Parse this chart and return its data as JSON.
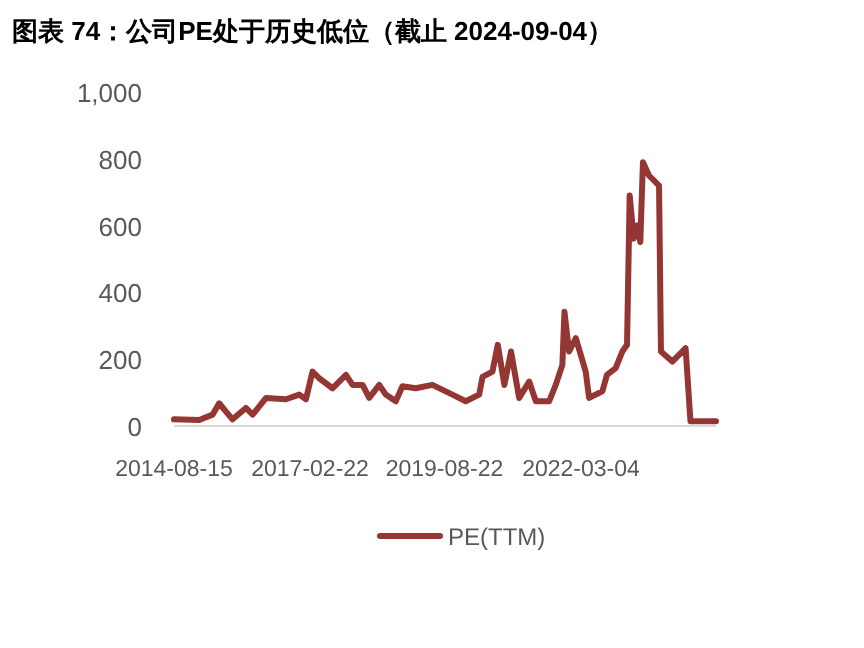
{
  "chart_data": {
    "type": "line",
    "title": "图表 74：公司PE处于历史低位（截止 2024-09-04）",
    "x": [
      "2014-08-15",
      "2015-02-02",
      "2015-05-03",
      "2015-06-17",
      "2015-08-01",
      "2015-09-16",
      "2015-12-15",
      "2016-01-30",
      "2016-04-30",
      "2016-09-12",
      "2016-12-11",
      "2017-01-25",
      "2017-03-11",
      "2017-04-25",
      "2017-07-24",
      "2017-10-23",
      "2017-12-07",
      "2018-02-13",
      "2018-03-30",
      "2018-06-06",
      "2018-07-20",
      "2018-09-26",
      "2018-11-10",
      "2019-02-08",
      "2019-06-01",
      "2019-10-15",
      "2020-01-13",
      "2020-04-13",
      "2020-05-06",
      "2020-07-12",
      "2020-08-17",
      "2020-10-01",
      "2020-11-15",
      "2021-01-09",
      "2021-03-18",
      "2021-05-02",
      "2021-07-31",
      "2021-09-14",
      "2021-10-29",
      "2021-11-12",
      "2021-12-13",
      "2022-01-28",
      "2022-04-05",
      "2022-04-28",
      "2022-07-27",
      "2022-08-27",
      "2022-10-25",
      "2022-12-09",
      "2023-01-10",
      "2023-01-28",
      "2023-02-24",
      "2023-03-23",
      "2023-04-10",
      "2023-04-28",
      "2023-06-08",
      "2023-08-15",
      "2023-08-28",
      "2023-11-13",
      "2024-02-11",
      "2024-03-15",
      "2024-09-04"
    ],
    "series": [
      {
        "name": "PE(TTM)",
        "color": "#943634",
        "values": [
          20,
          18,
          34,
          68,
          44,
          20,
          54,
          34,
          84,
          80,
          94,
          80,
          163,
          143,
          113,
          153,
          123,
          123,
          84,
          123,
          94,
          74,
          119,
          113,
          123,
          94,
          74,
          94,
          147,
          163,
          243,
          123,
          223,
          84,
          133,
          74,
          74,
          123,
          183,
          342,
          223,
          263,
          163,
          84,
          104,
          153,
          173,
          223,
          243,
          690,
          561,
          601,
          551,
          790,
          750,
          720,
          223,
          193,
          233,
          14,
          14
        ]
      }
    ],
    "xlim": [
      "2014-08-15",
      "2024-09-04"
    ],
    "xticks": [
      "2014-08-15",
      "2017-02-22",
      "2019-08-22",
      "2022-03-04"
    ],
    "ylim": [
      0,
      1000
    ],
    "yticks": [
      0,
      200,
      400,
      600,
      800,
      {
        "value": 1000,
        "label": "1,000"
      }
    ],
    "legend": "bottom"
  }
}
